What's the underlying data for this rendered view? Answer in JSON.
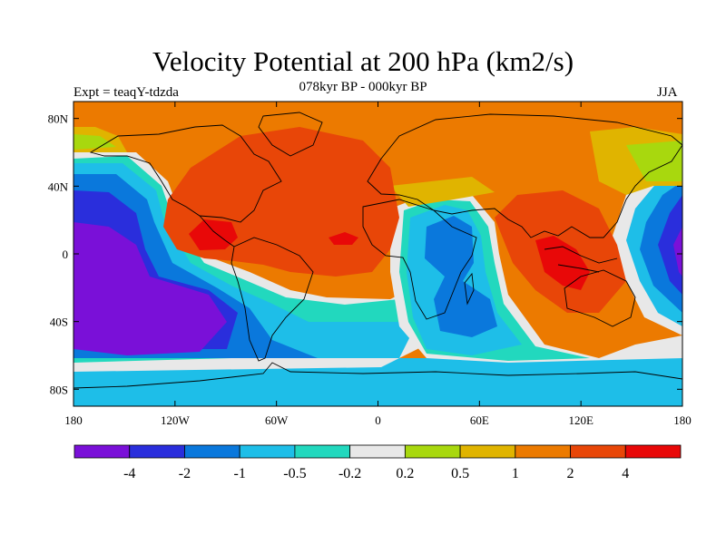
{
  "title": "Velocity Potential at 200 hPa (km2/s)",
  "subtitle": "078kyr BP - 000kyr BP",
  "left_label": "Expt = teaqY-tdzda",
  "right_label": "JJA",
  "lat_ticks": [
    "80N",
    "40N",
    "0",
    "40S",
    "80S"
  ],
  "lon_ticks": [
    "180",
    "120W",
    "60W",
    "0",
    "60E",
    "120E",
    "180"
  ],
  "colorbar": {
    "colors": [
      "#7a10d8",
      "#2a2edc",
      "#0a78dc",
      "#1ebee8",
      "#22d8be",
      "#e8e8e8",
      "#a8d80e",
      "#e0b400",
      "#ec7a00",
      "#e84608",
      "#e80808"
    ],
    "labels": [
      "-4",
      "-2",
      "-1",
      "-0.5",
      "-0.2",
      "0.2",
      "0.5",
      "1",
      "2",
      "4"
    ]
  }
}
